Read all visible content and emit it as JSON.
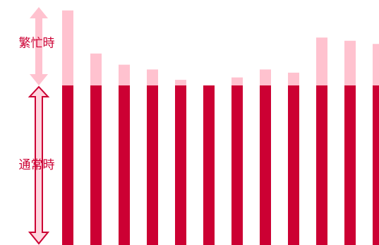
{
  "chart_data": {
    "type": "stacked_bar",
    "categories": [
      null,
      null,
      null,
      null,
      null,
      null,
      null,
      null,
      null,
      null,
      null,
      null
    ],
    "series": [
      {
        "name": "通常時",
        "color": "#cc0033",
        "values": [
          100,
          100,
          100,
          100,
          100,
          100,
          100,
          100,
          100,
          100,
          100,
          100
        ]
      },
      {
        "name": "繁忙時",
        "color": "#ffc2cf",
        "values": [
          47,
          20,
          13,
          10,
          3.5,
          0,
          5,
          10,
          8,
          30,
          28,
          26
        ]
      }
    ],
    "ylim": [
      0,
      150
    ]
  }
}
